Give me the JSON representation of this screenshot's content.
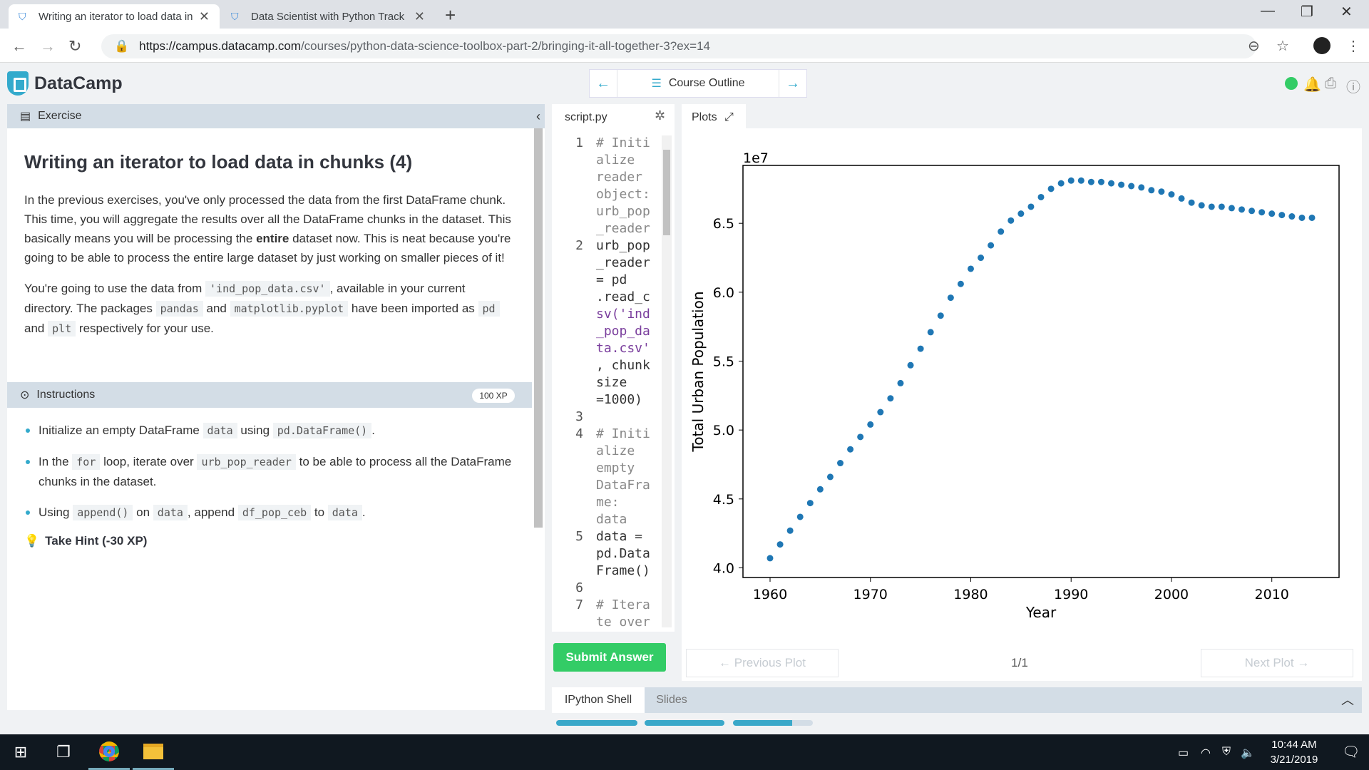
{
  "browser": {
    "tabs": [
      {
        "title": "Writing an iterator to load data in chunks",
        "close": "✕"
      },
      {
        "title": "Data Scientist with Python Track",
        "close": "✕"
      }
    ],
    "url_host": "https://campus.datacamp.com",
    "url_path": "/courses/python-data-science-toolbox-part-2/bringing-it-all-together-3?ex=14"
  },
  "app": {
    "logo_text": "DataCamp",
    "course_outline": "Course Outline"
  },
  "exercise": {
    "header": "Exercise",
    "title": "Writing an iterator to load data in chunks (4)",
    "p1_a": "In the previous exercises, you've only processed the data from the first DataFrame chunk. This time, you will aggregate the results over all the DataFrame chunks in the dataset. This basically means you will be processing the ",
    "p1_bold": "entire",
    "p1_b": " dataset now. This is neat because you're going to be able to process the entire large dataset by just working on smaller pieces of it!",
    "p2_a": "You're going to use the data from ",
    "p2_code1": "'ind_pop_data.csv'",
    "p2_b": ", available in your current directory. The packages ",
    "p2_code2": "pandas",
    "p2_c": " and ",
    "p2_code3": "matplotlib.pyplot",
    "p2_d": " have been imported as ",
    "p2_code4": "pd",
    "p2_e": " and ",
    "p2_code5": "plt",
    "p2_f": " respectively for your use."
  },
  "instructions": {
    "header": "Instructions",
    "xp": "100 XP",
    "b1_a": "Initialize an empty DataFrame ",
    "b1_code1": "data",
    "b1_b": " using ",
    "b1_code2": "pd.DataFrame()",
    "b1_c": ".",
    "b2_a": "In the ",
    "b2_code1": "for",
    "b2_b": " loop, iterate over ",
    "b2_code2": "urb_pop_reader",
    "b2_c": " to be able to process all the DataFrame chunks in the dataset.",
    "b3_a": "Using ",
    "b3_code1": "append()",
    "b3_b": " on ",
    "b3_code2": "data",
    "b3_c": ", append ",
    "b3_code3": "df_pop_ceb",
    "b3_d": " to ",
    "b3_code4": "data",
    "b3_e": ".",
    "hint": "Take Hint (-30 XP)"
  },
  "editor": {
    "tab": "script.py",
    "lines": [
      {
        "n": "1",
        "t": "# Initi",
        "c": "cm"
      },
      {
        "n": "",
        "t": "alize",
        "c": "cm"
      },
      {
        "n": "",
        "t": "reader",
        "c": "cm"
      },
      {
        "n": "",
        "t": "object:",
        "c": "cm"
      },
      {
        "n": "",
        "t": "urb_pop",
        "c": "cm"
      },
      {
        "n": "",
        "t": "_reader",
        "c": "cm"
      },
      {
        "n": "2",
        "t": "urb_pop",
        "c": ""
      },
      {
        "n": "",
        "t": "_reader",
        "c": ""
      },
      {
        "n": "",
        "t": "= pd",
        "c": ""
      },
      {
        "n": "",
        "t": ".read_c",
        "c": ""
      },
      {
        "n": "",
        "t": "sv('ind",
        "c": "st"
      },
      {
        "n": "",
        "t": "_pop_da",
        "c": "st"
      },
      {
        "n": "",
        "t": "ta.csv'",
        "c": "st"
      },
      {
        "n": "",
        "t": ", chunk",
        "c": ""
      },
      {
        "n": "",
        "t": "size",
        "c": ""
      },
      {
        "n": "",
        "t": "=1000)",
        "c": ""
      },
      {
        "n": "3",
        "t": "",
        "c": ""
      },
      {
        "n": "4",
        "t": "# Initi",
        "c": "cm"
      },
      {
        "n": "",
        "t": "alize",
        "c": "cm"
      },
      {
        "n": "",
        "t": "empty",
        "c": "cm"
      },
      {
        "n": "",
        "t": "DataFra",
        "c": "cm"
      },
      {
        "n": "",
        "t": "me:",
        "c": "cm"
      },
      {
        "n": "",
        "t": "data",
        "c": "cm"
      },
      {
        "n": "5",
        "t": "data =",
        "c": ""
      },
      {
        "n": "",
        "t": "pd.Data",
        "c": ""
      },
      {
        "n": "",
        "t": "Frame()",
        "c": ""
      },
      {
        "n": "6",
        "t": "",
        "c": ""
      },
      {
        "n": "7",
        "t": "# Itera",
        "c": "cm"
      },
      {
        "n": "",
        "t": "te over",
        "c": "cm"
      }
    ],
    "submit": "Submit Answer"
  },
  "plots": {
    "tab": "Plots",
    "prev": "← Previous Plot",
    "next": "Next Plot →",
    "count": "1/1"
  },
  "chart_data": {
    "type": "scatter",
    "title": "",
    "xlabel": "Year",
    "ylabel": "Total Urban Population",
    "offset_label": "1e7",
    "xlim": [
      1957.3,
      2016.7
    ],
    "ylim": [
      3.93,
      6.92
    ],
    "xticks": [
      "1960",
      "1970",
      "1980",
      "1990",
      "2000",
      "2010"
    ],
    "yticks": [
      "4.0",
      "4.5",
      "5.0",
      "5.5",
      "6.0",
      "6.5"
    ],
    "color": "#1f77b4",
    "x": [
      1960,
      1961,
      1962,
      1963,
      1964,
      1965,
      1966,
      1967,
      1968,
      1969,
      1970,
      1971,
      1972,
      1973,
      1974,
      1975,
      1976,
      1977,
      1978,
      1979,
      1980,
      1981,
      1982,
      1983,
      1984,
      1985,
      1986,
      1987,
      1988,
      1989,
      1990,
      1991,
      1992,
      1993,
      1994,
      1995,
      1996,
      1997,
      1998,
      1999,
      2000,
      2001,
      2002,
      2003,
      2004,
      2005,
      2006,
      2007,
      2008,
      2009,
      2010,
      2011,
      2012,
      2013,
      2014
    ],
    "y": [
      4.07,
      4.17,
      4.27,
      4.37,
      4.47,
      4.57,
      4.66,
      4.76,
      4.86,
      4.95,
      5.04,
      5.13,
      5.23,
      5.34,
      5.47,
      5.59,
      5.71,
      5.83,
      5.96,
      6.06,
      6.17,
      6.25,
      6.34,
      6.44,
      6.52,
      6.57,
      6.62,
      6.69,
      6.75,
      6.79,
      6.81,
      6.81,
      6.8,
      6.8,
      6.79,
      6.78,
      6.77,
      6.76,
      6.74,
      6.73,
      6.71,
      6.68,
      6.65,
      6.63,
      6.62,
      6.62,
      6.61,
      6.6,
      6.59,
      6.58,
      6.57,
      6.56,
      6.55,
      6.54,
      6.54
    ]
  },
  "bottom": {
    "tab1": "IPython Shell",
    "tab2": "Slides"
  },
  "taskbar": {
    "time": "10:44 AM",
    "date": "3/21/2019"
  }
}
